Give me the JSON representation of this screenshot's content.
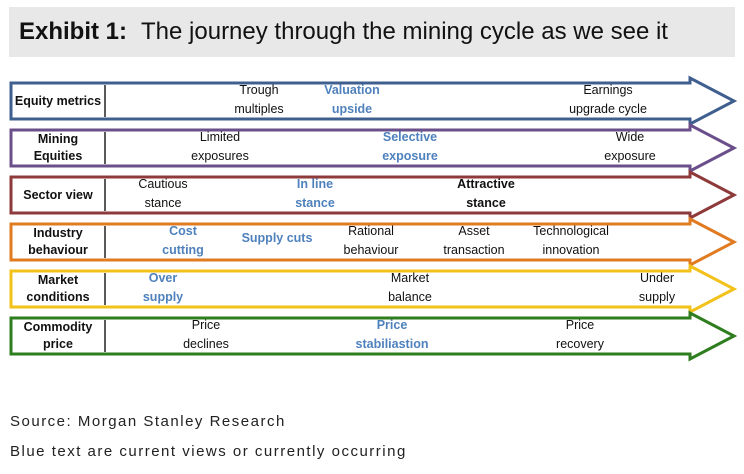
{
  "header": {
    "label": "Exhibit 1:",
    "title": "The journey through the mining cycle as we see it"
  },
  "colors": {
    "highlight": "#4f81bd",
    "header_bg": "#e8e8e8"
  },
  "rows": [
    {
      "label": "Equity metrics",
      "color": "#3f5f8f",
      "cells": [
        {
          "text": "Trough multiples",
          "lines": [
            "Trough",
            "multiples"
          ],
          "current": false
        },
        {
          "text": "Valuation upside",
          "lines": [
            "Valuation",
            "upside"
          ],
          "current": true
        },
        {
          "text": "Earnings upgrade cycle",
          "lines": [
            "Earnings",
            "upgrade cycle"
          ],
          "current": false
        }
      ]
    },
    {
      "label": "Mining Equities",
      "color": "#6a4f8a",
      "cells": [
        {
          "text": "Limited exposures",
          "lines": [
            "Limited",
            "exposures"
          ],
          "current": false
        },
        {
          "text": "Selective exposure",
          "lines": [
            "Selective",
            "exposure"
          ],
          "current": true
        },
        {
          "text": "Wide exposure",
          "lines": [
            "Wide",
            "exposure"
          ],
          "current": false
        }
      ]
    },
    {
      "label": "Sector view",
      "color": "#8e3a3a",
      "cells": [
        {
          "text": "Cautious stance",
          "lines": [
            "Cautious",
            "stance"
          ],
          "current": false
        },
        {
          "text": "In line stance",
          "lines": [
            "In line",
            "stance"
          ],
          "current": true
        },
        {
          "text": "Attractive stance",
          "lines": [
            "Attractive",
            "stance"
          ],
          "current": false,
          "bold": true
        }
      ]
    },
    {
      "label": "Industry behaviour",
      "color": "#e07b22",
      "cells": [
        {
          "text": "Cost cutting",
          "lines": [
            "Cost",
            "cutting"
          ],
          "current": true
        },
        {
          "text": "Supply cuts",
          "lines": [
            "Supply cuts"
          ],
          "current": true
        },
        {
          "text": "Rational behaviour",
          "lines": [
            "Rational",
            "behaviour"
          ],
          "current": false
        },
        {
          "text": "Asset transaction",
          "lines": [
            "Asset",
            "transaction"
          ],
          "current": false
        },
        {
          "text": "Technological innovation",
          "lines": [
            "Technological",
            "innovation"
          ],
          "current": false
        }
      ]
    },
    {
      "label": "Market conditions",
      "color": "#f2c21b",
      "cells": [
        {
          "text": "Over supply",
          "lines": [
            "Over",
            "supply"
          ],
          "current": true
        },
        {
          "text": "Market balance",
          "lines": [
            "Market",
            "balance"
          ],
          "current": false
        },
        {
          "text": "Under supply",
          "lines": [
            "Under",
            "supply"
          ],
          "current": false
        }
      ]
    },
    {
      "label": "Commodity price",
      "color": "#2e7d1f",
      "cells": [
        {
          "text": "Price declines",
          "lines": [
            "Price",
            "declines"
          ],
          "current": false
        },
        {
          "text": "Price stabiliastion",
          "lines": [
            "Price",
            "stabiliastion"
          ],
          "current": true
        },
        {
          "text": "Price recovery",
          "lines": [
            "Price",
            "recovery"
          ],
          "current": false
        }
      ]
    }
  ],
  "footer": {
    "source": "Source: Morgan Stanley Research",
    "note": "Blue text are current views or currently occurring"
  }
}
